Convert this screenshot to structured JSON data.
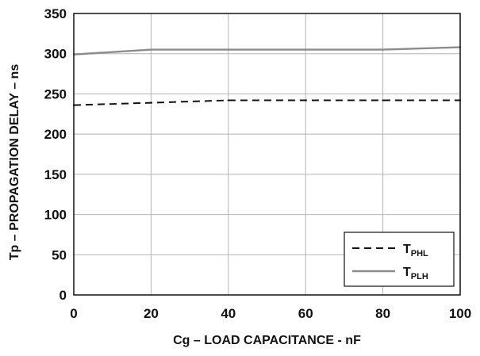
{
  "chart_data": {
    "type": "line",
    "title": "",
    "xlabel": "Cg – LOAD CAPACITANCE - nF",
    "ylabel": "Tp – PROPAGATION DELAY – ns",
    "xlim": [
      0,
      100
    ],
    "ylim": [
      0,
      350
    ],
    "x_ticks": [
      0,
      20,
      40,
      60,
      80,
      100
    ],
    "y_ticks": [
      0,
      50,
      100,
      150,
      200,
      250,
      300,
      350
    ],
    "grid": true,
    "legend_position": "bottom-right",
    "series": [
      {
        "name": "TPHL",
        "label_main": "T",
        "label_sub": "PHL",
        "style": "dashed",
        "color": "#111111",
        "x": [
          0,
          20,
          40,
          60,
          80,
          100
        ],
        "y": [
          236,
          239,
          242,
          242,
          242,
          242
        ]
      },
      {
        "name": "TPLH",
        "label_main": "T",
        "label_sub": "PLH",
        "style": "solid",
        "color": "#8c8c8c",
        "x": [
          0,
          20,
          40,
          60,
          80,
          100
        ],
        "y": [
          299,
          305,
          305,
          305,
          305,
          308
        ]
      }
    ]
  }
}
